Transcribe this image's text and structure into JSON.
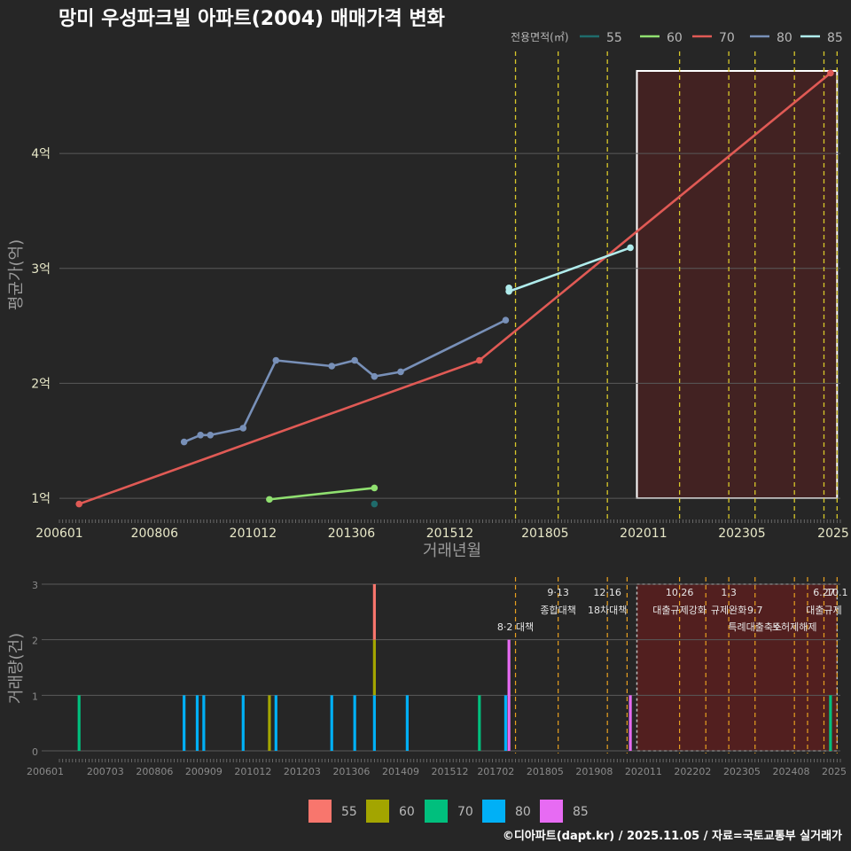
{
  "title": "망미 우성파크빌 아파트(2004) 매매가격 변화",
  "footer": "©디아파트(dapt.kr) / 2025.11.05 / 자료=국토교통부 실거래가",
  "colors": {
    "background": "#262626",
    "grid": "#5a5a5a",
    "policy_line": "#d8c82a",
    "bar_policy_line": "#e8a020",
    "highlight_fill": "#5a1f1f",
    "s55": "#1f6b6b",
    "s60": "#90e070",
    "s70": "#e05a55",
    "s80": "#7890b8",
    "s85": "#b0ecec",
    "b55": "#f8766d",
    "b60": "#a3a500",
    "b70": "#00bf7d",
    "b80": "#00b0f6",
    "b85": "#e76bf3"
  },
  "chart_data": [
    {
      "type": "line",
      "name": "평균가격 추이",
      "xlabel": "거래년월",
      "ylabel": "평균가(억)",
      "x_ticks": [
        "200601",
        "200806",
        "201012",
        "201306",
        "201512",
        "201805",
        "202011",
        "202305",
        "2025"
      ],
      "y_ticks": [
        "1억",
        "2억",
        "3억",
        "4억"
      ],
      "ylim_eok": [
        0.8,
        4.95
      ],
      "legend_title": "전용면적(㎡)",
      "legend": [
        "55",
        "60",
        "70",
        "80",
        "85"
      ],
      "series": [
        {
          "name": "55",
          "points": [
            [
              "2014-01",
              0.95
            ]
          ]
        },
        {
          "name": "60",
          "points": [
            [
              "2011-05",
              0.99
            ],
            [
              "2014-01",
              1.09
            ]
          ]
        },
        {
          "name": "70",
          "points": [
            [
              "2006-07",
              0.95
            ],
            [
              "2016-09",
              2.2
            ],
            [
              "2025-08",
              4.7
            ]
          ]
        },
        {
          "name": "80",
          "points": [
            [
              "2009-03",
              1.49
            ],
            [
              "2009-08",
              1.55
            ],
            [
              "2009-11",
              1.55
            ],
            [
              "2010-09",
              1.61
            ],
            [
              "2011-07",
              2.2
            ],
            [
              "2012-12",
              2.15
            ],
            [
              "2013-07",
              2.2
            ],
            [
              "2014-01",
              2.06
            ],
            [
              "2014-09",
              2.1
            ],
            [
              "2017-05",
              2.55
            ]
          ]
        },
        {
          "name": "85",
          "points": [
            [
              "2017-06",
              2.83
            ],
            [
              "2017-06",
              2.8
            ],
            [
              "2020-07",
              3.18
            ]
          ]
        }
      ],
      "policy_dates": [
        "2017-08",
        "2018-09",
        "2019-12",
        "2021-10",
        "2023-01",
        "2023-09",
        "2024-09",
        "2025-06",
        "2025-10"
      ],
      "highlight": {
        "from": "2020-09",
        "to": "2025-10"
      }
    },
    {
      "type": "bar",
      "name": "거래량",
      "ylabel": "거래량(건)",
      "x_ticks": [
        "200601",
        "200703",
        "200806",
        "200909",
        "201012",
        "201203",
        "201306",
        "201409",
        "201512",
        "201702",
        "201805",
        "201908",
        "202011",
        "202202",
        "202305",
        "202408",
        "2025"
      ],
      "y_ticks": [
        "0",
        "1",
        "2",
        "3"
      ],
      "ylim": [
        0,
        3
      ],
      "legend": [
        "55",
        "60",
        "70",
        "80",
        "85"
      ],
      "bars": [
        {
          "date": "2006-07",
          "segments": [
            [
              "70",
              1
            ]
          ]
        },
        {
          "date": "2009-03",
          "segments": [
            [
              "80",
              1
            ]
          ]
        },
        {
          "date": "2009-07",
          "segments": [
            [
              "80",
              1
            ]
          ]
        },
        {
          "date": "2009-09",
          "segments": [
            [
              "80",
              1
            ]
          ]
        },
        {
          "date": "2010-09",
          "segments": [
            [
              "80",
              1
            ]
          ]
        },
        {
          "date": "2011-05",
          "segments": [
            [
              "60",
              1
            ]
          ]
        },
        {
          "date": "2011-07",
          "segments": [
            [
              "80",
              1
            ]
          ]
        },
        {
          "date": "2012-12",
          "segments": [
            [
              "80",
              1
            ]
          ]
        },
        {
          "date": "2013-07",
          "segments": [
            [
              "80",
              1
            ]
          ]
        },
        {
          "date": "2014-01",
          "segments": [
            [
              "80",
              1
            ],
            [
              "60",
              1
            ],
            [
              "55",
              1
            ]
          ]
        },
        {
          "date": "2014-11",
          "segments": [
            [
              "80",
              1
            ]
          ]
        },
        {
          "date": "2016-09",
          "segments": [
            [
              "70",
              1
            ]
          ]
        },
        {
          "date": "2017-05",
          "segments": [
            [
              "80",
              1
            ]
          ]
        },
        {
          "date": "2017-06",
          "segments": [
            [
              "85",
              2
            ]
          ]
        },
        {
          "date": "2020-07",
          "segments": [
            [
              "85",
              1
            ]
          ]
        },
        {
          "date": "2025-08",
          "segments": [
            [
              "70",
              1
            ]
          ]
        }
      ],
      "policy_dates": [
        "2017-08",
        "2018-09",
        "2019-12",
        "2020-06",
        "2021-10",
        "2022-06",
        "2023-01",
        "2023-09",
        "2024-09",
        "2025-01",
        "2025-06",
        "2025-10"
      ],
      "annotations": [
        {
          "date": "2017-08",
          "row": 2,
          "text": "8·2 대책"
        },
        {
          "date": "2018-09",
          "row": 0,
          "text": "9·13"
        },
        {
          "date": "2018-09",
          "row": 1,
          "text": "종합대책"
        },
        {
          "date": "2019-12",
          "row": 0,
          "text": "12·16"
        },
        {
          "date": "2019-12",
          "row": 1,
          "text": "18차대책"
        },
        {
          "date": "2021-10",
          "row": 0,
          "text": "10.26"
        },
        {
          "date": "2021-10",
          "row": 1,
          "text": "대출규제강화"
        },
        {
          "date": "2023-01",
          "row": 0,
          "text": "1.3"
        },
        {
          "date": "2023-01",
          "row": 1,
          "text": "규제완화"
        },
        {
          "date": "2023-09",
          "row": 1,
          "text": "9.7"
        },
        {
          "date": "2023-09",
          "row": 2,
          "text": "특례대출축소"
        },
        {
          "date": "2024-09",
          "row": 2,
          "text": "토허제해제"
        },
        {
          "date": "2025-06",
          "row": 0,
          "text": "6.27"
        },
        {
          "date": "2025-06",
          "row": 1,
          "text": "대출규제"
        },
        {
          "date": "2025-10",
          "row": 0,
          "text": "10.1"
        }
      ],
      "highlight": {
        "from": "2020-09",
        "to": "2025-10"
      }
    }
  ]
}
